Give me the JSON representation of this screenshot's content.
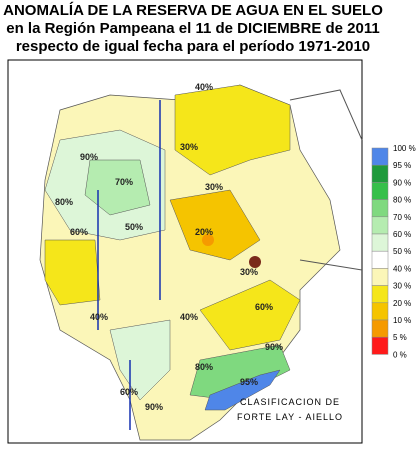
{
  "header": {
    "title_lines": [
      "ANOMALÍA DE LA RESERVA DE AGUA EN EL SUELO",
      "en la Región Pampeana el 11 de DICIEMBRE de 2011",
      "respecto de igual fecha para el período 1971-2010"
    ]
  },
  "legend": {
    "labels": [
      "100 %",
      "95 %",
      "90 %",
      "80 %",
      "70 %",
      "60 %",
      "50 %",
      "40 %",
      "30 %",
      "20 %",
      "10 %",
      "5 %",
      "0 %"
    ],
    "colors": [
      "#4f86e8",
      "#1f9a3c",
      "#36c04a",
      "#7fd97f",
      "#b5ecb0",
      "#ddf6d8",
      "#ffffff",
      "#fbf6b8",
      "#f5e61a",
      "#f5c400",
      "#f59a00",
      "#ff1a1a"
    ]
  },
  "map": {
    "contour_labels": [
      "90%",
      "80%",
      "70%",
      "60%",
      "50%",
      "40%",
      "30%",
      "40%",
      "30%",
      "20%",
      "60%",
      "90%",
      "95%",
      "60%",
      "80%",
      "90%",
      "40%",
      "30%"
    ]
  },
  "credit": {
    "lines": [
      "CLASIFICACION DE",
      "FORTE LAY - AIELLO"
    ]
  }
}
